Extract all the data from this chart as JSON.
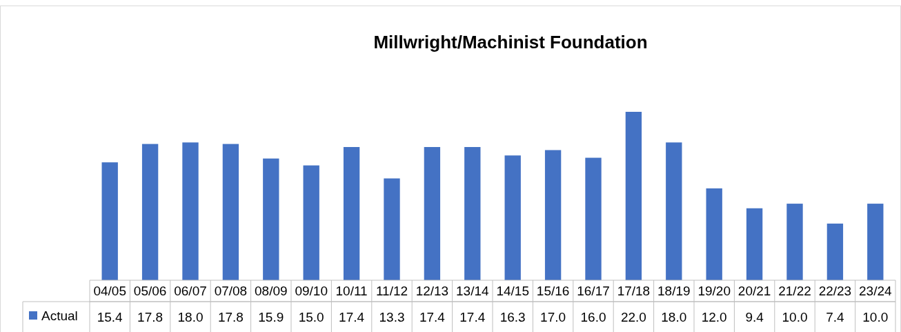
{
  "chart_data": {
    "type": "bar",
    "title": "Millwright/Machinist Foundation",
    "categories": [
      "04/05",
      "05/06",
      "06/07",
      "07/08",
      "08/09",
      "09/10",
      "10/11",
      "11/12",
      "12/13",
      "13/14",
      "14/15",
      "15/16",
      "16/17",
      "17/18",
      "18/19",
      "19/20",
      "20/21",
      "21/22",
      "22/23",
      "23/24"
    ],
    "series": [
      {
        "name": "Actual",
        "color": "#4472c4",
        "values": [
          15.4,
          17.8,
          18,
          17.8,
          15.9,
          15,
          17.4,
          13.3,
          17.4,
          17.4,
          16.3,
          17,
          16,
          22,
          18,
          12,
          9.4,
          10,
          7.4,
          10
        ],
        "value_labels": [
          "15.4",
          "17.8",
          "18.0",
          "17.8",
          "15.9",
          "15.0",
          "17.4",
          "13.3",
          "17.4",
          "17.4",
          "16.3",
          "17.0",
          "16.0",
          "22.0",
          "18.0",
          "12.0",
          "9.4",
          "10.0",
          "7.4",
          "10.0"
        ]
      }
    ],
    "legend": "bottom"
  }
}
